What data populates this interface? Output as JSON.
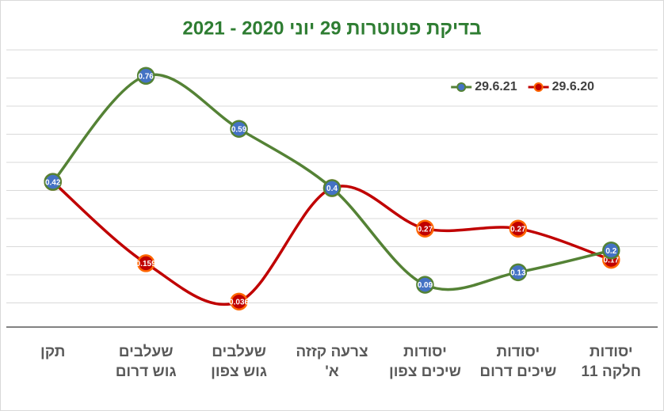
{
  "chart_data": {
    "type": "line",
    "title": "בדיקת פטוטרות 29 יוני 2020 - 2021",
    "categories": [
      "תקן",
      "שעלבים גוש דרום",
      "שעלבים גוש צפון",
      "צרעה קזזה א'",
      "יסודות שיכים צפון",
      "יסודות שיכים דרום",
      "יסודות חלקה 11"
    ],
    "series": [
      {
        "name": "29.6.20",
        "color": "#c00000",
        "values": [
          0.42,
          0.159,
          0.036,
          0.4,
          0.27,
          0.27,
          0.17
        ]
      },
      {
        "name": "29.6.21",
        "color": "#548235",
        "values": [
          0.42,
          0.76,
          0.59,
          0.4,
          0.09,
          0.13,
          0.2
        ]
      }
    ],
    "ylim": [
      0,
      0.8
    ],
    "grid": true,
    "legend": "top-right",
    "smooth": true
  }
}
